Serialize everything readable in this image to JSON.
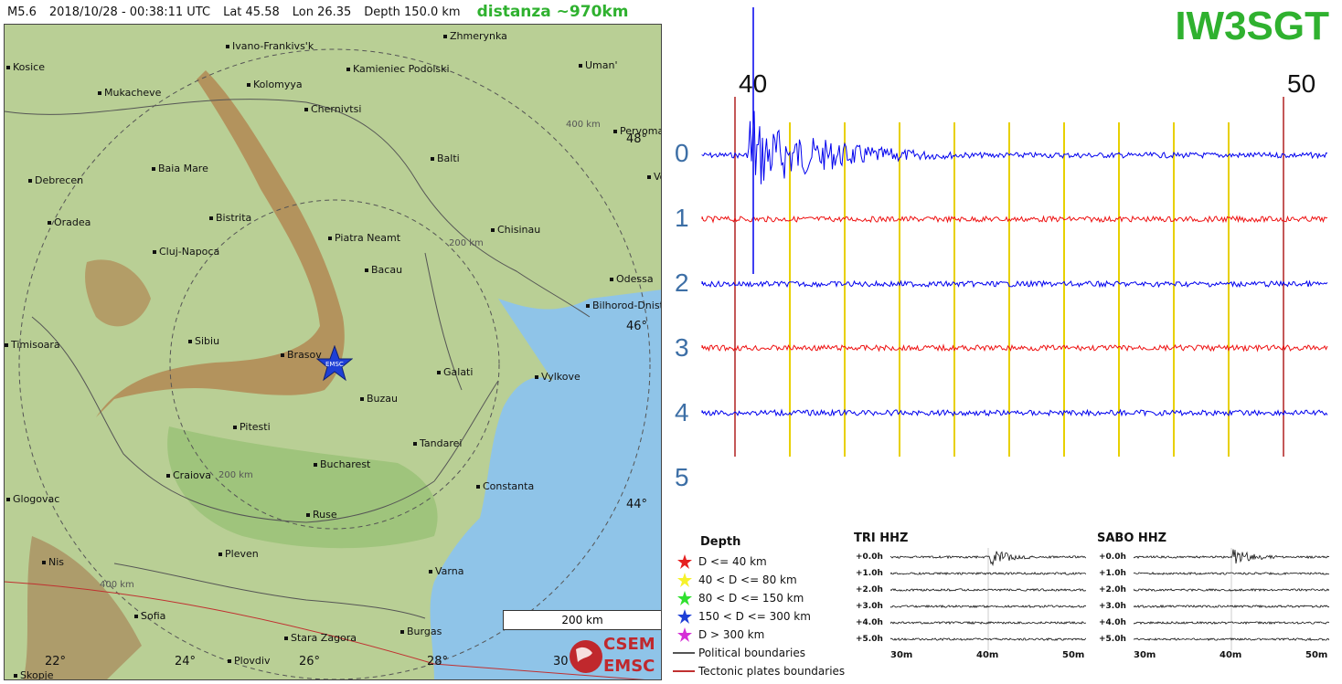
{
  "header": {
    "magnitude": "M5.6",
    "datetime": "2018/10/28 - 00:38:11 UTC",
    "lat": "Lat 45.58",
    "lon": "Lon 26.35",
    "depth": "Depth 150.0 km",
    "distance": "distanza ~970km"
  },
  "map": {
    "cities": [
      {
        "name": "Ivano-Frankivs'k"
      },
      {
        "name": "Zhmerynka"
      },
      {
        "name": "Kosice"
      },
      {
        "name": "Kamieniec Podolski"
      },
      {
        "name": "Uman'"
      },
      {
        "name": "Mukacheve"
      },
      {
        "name": "Kolomyya"
      },
      {
        "name": "Chernivtsi"
      },
      {
        "name": "Pervoma"
      },
      {
        "name": "Baia Mare"
      },
      {
        "name": "Balti"
      },
      {
        "name": "Debrecen"
      },
      {
        "name": "Vo"
      },
      {
        "name": "Oradea"
      },
      {
        "name": "Bistrita"
      },
      {
        "name": "Chisinau"
      },
      {
        "name": "Piatra Neamt"
      },
      {
        "name": "Cluj-Napoca"
      },
      {
        "name": "Bacau"
      },
      {
        "name": "Odessa"
      },
      {
        "name": "Bilhorod-Dnist"
      },
      {
        "name": "Timisoara"
      },
      {
        "name": "Sibiu"
      },
      {
        "name": "Brasov"
      },
      {
        "name": "Galati"
      },
      {
        "name": "Vylkove"
      },
      {
        "name": "Buzau"
      },
      {
        "name": "Pitesti"
      },
      {
        "name": "Tandarei"
      },
      {
        "name": "Craiova"
      },
      {
        "name": "Bucharest"
      },
      {
        "name": "Constanta"
      },
      {
        "name": "Glogovac"
      },
      {
        "name": "Ruse"
      },
      {
        "name": "Pleven"
      },
      {
        "name": "Nis"
      },
      {
        "name": "Varna"
      },
      {
        "name": "Sofia"
      },
      {
        "name": "Stara Zagora"
      },
      {
        "name": "Burgas"
      },
      {
        "name": "Plovdiv"
      },
      {
        "name": "Skopje"
      }
    ],
    "lat_labels": [
      "48°",
      "46°",
      "44°"
    ],
    "lon_labels": [
      "22°",
      "24°",
      "26°",
      "28°",
      "30"
    ],
    "ring_labels": [
      "400 km",
      "200 km",
      "200 km",
      "400 km"
    ],
    "epicenter_label": "EMSC",
    "scale": "200 km",
    "logo_top": "CSEM",
    "logo_bottom": "EMSC"
  },
  "seismogram": {
    "station": "IW3SGT",
    "minute_start": "40",
    "minute_end": "50",
    "rows": [
      "0",
      "1",
      "2",
      "3",
      "4",
      "5"
    ],
    "colors": {
      "blue": "#0000ee",
      "red": "#ee1111",
      "grid": "#e8d000",
      "marker": "#b02020"
    }
  },
  "legend": {
    "title": "Depth",
    "items": [
      {
        "label": "D <= 40 km",
        "color": "#e52020"
      },
      {
        "label": "40 < D <= 80 km",
        "color": "#f6f22a"
      },
      {
        "label": "80 < D <= 150 km",
        "color": "#2fe02f"
      },
      {
        "label": "150 < D <= 300 km",
        "color": "#1e3fd6"
      },
      {
        "label": "D > 300 km",
        "color": "#d52fd6"
      }
    ],
    "political": "Political boundaries",
    "tectonic": "Tectonic plates boundaries"
  },
  "mini_plots": [
    {
      "title": "TRI HHZ",
      "hours": [
        "+0.0h",
        "+1.0h",
        "+2.0h",
        "+3.0h",
        "+4.0h",
        "+5.0h"
      ],
      "xlabels": [
        "30m",
        "40m",
        "50m"
      ]
    },
    {
      "title": "SABO HHZ",
      "hours": [
        "+0.0h",
        "+1.0h",
        "+2.0h",
        "+3.0h",
        "+4.0h",
        "+5.0h"
      ],
      "xlabels": [
        "30m",
        "40m",
        "50m"
      ]
    }
  ]
}
